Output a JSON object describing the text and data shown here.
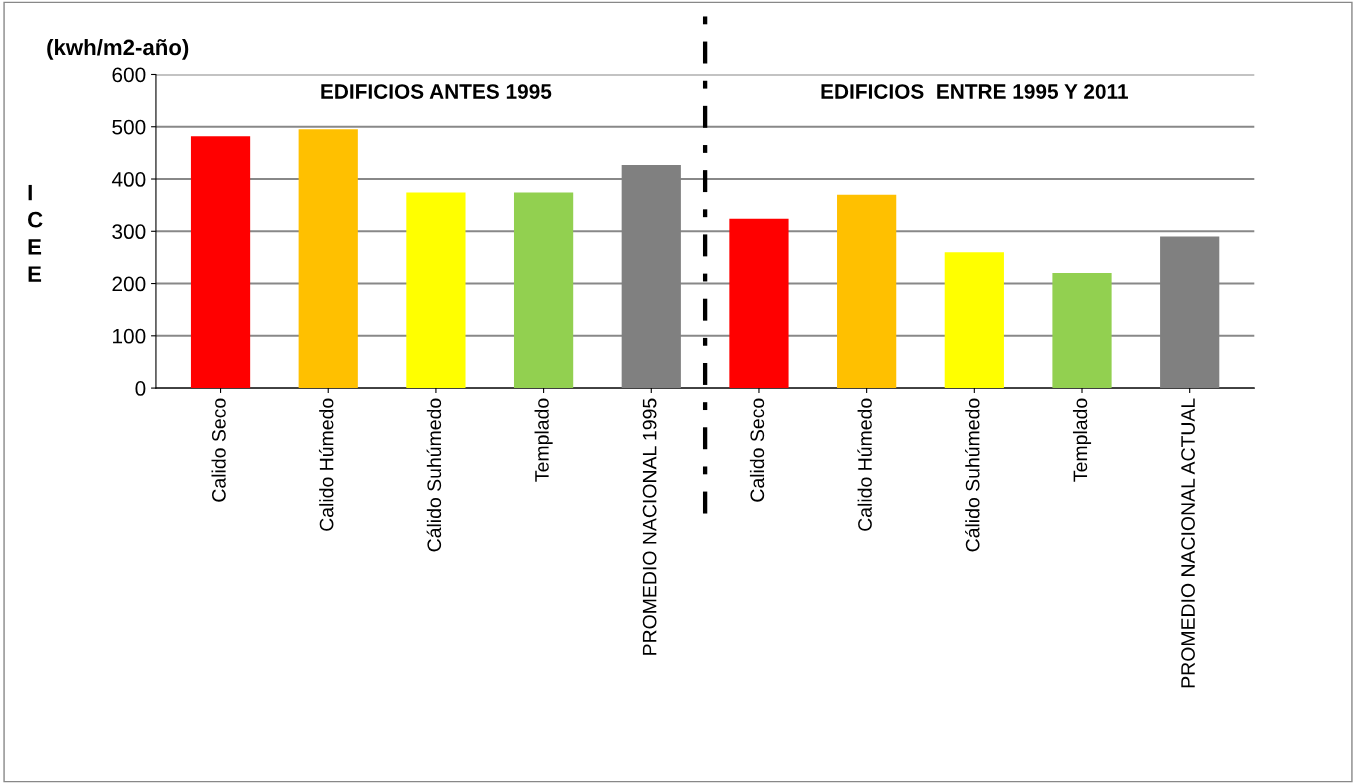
{
  "chart_data": {
    "type": "bar",
    "title": "(kwh/m2-año)",
    "ylabel": "ICEE",
    "categories": [
      "Calido Seco",
      "Calido Húmedo",
      "Cálido Suhúmedo",
      "Templado",
      "PROMEDIO NACIONAL 1995",
      "Calido Seco",
      "Calido Húmedo",
      "Cálido Suhúmedo",
      "Templado",
      "PROMEDIO NACIONAL ACTUAL"
    ],
    "values": [
      482,
      495,
      374,
      374,
      427,
      324,
      370,
      260,
      220,
      290
    ],
    "colors": [
      "#ff0000",
      "#ffc000",
      "#ffff00",
      "#92d050",
      "#808080",
      "#ff0000",
      "#ffc000",
      "#ffff00",
      "#92d050",
      "#808080"
    ],
    "ylim": [
      0,
      600
    ],
    "yticks": [
      0,
      100,
      200,
      300,
      400,
      500,
      600
    ],
    "grid": "y",
    "annotations": [
      "EDIFICIOS ANTES 1995",
      "EDIFICIOS  ENTRE 1995 Y 2011"
    ]
  }
}
